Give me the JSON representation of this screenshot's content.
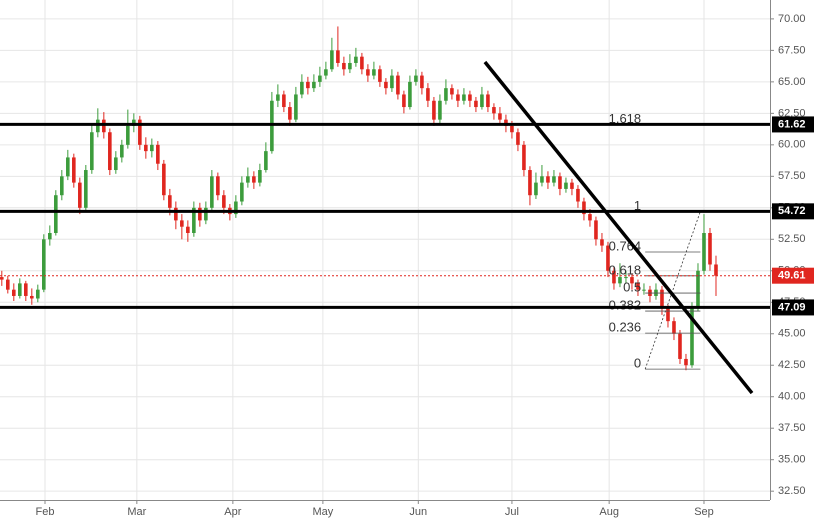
{
  "chart_data": {
    "type": "candlestick",
    "up_color": "#3c9c3c",
    "down_color": "#e0261f",
    "xlim": [
      -0.3,
      128
    ],
    "ylim": [
      31.8,
      71.5
    ],
    "xticks": [
      {
        "value": 7.2,
        "label": "Feb"
      },
      {
        "value": 22.5,
        "label": "Mar"
      },
      {
        "value": 38.5,
        "label": "Apr"
      },
      {
        "value": 53.5,
        "label": "May"
      },
      {
        "value": 69.4,
        "label": "Jun"
      },
      {
        "value": 85,
        "label": "Jul"
      },
      {
        "value": 101.2,
        "label": "Aug"
      },
      {
        "value": 117,
        "label": "Sep"
      }
    ],
    "yticks": [
      {
        "value": 32.5,
        "label": "32.50"
      },
      {
        "value": 35,
        "label": "35.00"
      },
      {
        "value": 37.5,
        "label": "37.50"
      },
      {
        "value": 40,
        "label": "40.00"
      },
      {
        "value": 42.5,
        "label": "42.50"
      },
      {
        "value": 45,
        "label": "45.00"
      },
      {
        "value": 47.5,
        "label": "47.50"
      },
      {
        "value": 50,
        "label": "50.00"
      },
      {
        "value": 52.5,
        "label": "52.50"
      },
      {
        "value": 55,
        "label": "55.00"
      },
      {
        "value": 57.5,
        "label": "57.50"
      },
      {
        "value": 60,
        "label": "60.00"
      },
      {
        "value": 62.5,
        "label": "62.50"
      },
      {
        "value": 65,
        "label": "65.00"
      },
      {
        "value": 67.5,
        "label": "67.50"
      },
      {
        "value": 70,
        "label": "70.00"
      }
    ],
    "grid": true,
    "candles": [
      [
        49.5,
        50,
        48.8,
        49.3
      ],
      [
        49.3,
        49.6,
        48.2,
        48.5
      ],
      [
        48.5,
        49,
        47.6,
        48
      ],
      [
        48,
        49.4,
        47.8,
        49
      ],
      [
        49,
        49.2,
        47.6,
        48
      ],
      [
        48,
        48.6,
        47.3,
        47.8
      ],
      [
        47.8,
        48.9,
        47.5,
        48.5
      ],
      [
        48.5,
        52.9,
        48.3,
        52.5
      ],
      [
        52.5,
        53.6,
        52,
        53
      ],
      [
        53,
        56.4,
        52.8,
        56
      ],
      [
        56,
        58,
        55.6,
        57.5
      ],
      [
        57.5,
        59.6,
        57.2,
        59
      ],
      [
        59,
        59.3,
        56.6,
        57
      ],
      [
        57,
        57.4,
        54.5,
        55
      ],
      [
        55,
        58.4,
        54.8,
        58
      ],
      [
        58,
        61.6,
        57.7,
        61
      ],
      [
        61,
        62.9,
        60.6,
        62
      ],
      [
        62,
        62.6,
        60.5,
        61
      ],
      [
        61,
        61.3,
        57.6,
        58
      ],
      [
        58,
        59.5,
        57.7,
        59
      ],
      [
        59,
        60.4,
        58.6,
        60
      ],
      [
        60,
        62.8,
        59.7,
        61.5
      ],
      [
        61.5,
        62.5,
        61,
        62
      ],
      [
        62,
        62.3,
        59.6,
        60
      ],
      [
        60,
        60.6,
        58.9,
        59.5
      ],
      [
        59.5,
        60.5,
        59,
        60
      ],
      [
        60,
        60.3,
        58,
        58.5
      ],
      [
        58.5,
        58.8,
        55.6,
        56
      ],
      [
        56,
        56.5,
        54.4,
        55
      ],
      [
        55,
        55.5,
        53.3,
        54
      ],
      [
        54,
        54.5,
        52.5,
        53.5
      ],
      [
        53.5,
        54,
        52.3,
        53
      ],
      [
        53,
        55.5,
        52.7,
        55
      ],
      [
        55,
        55.4,
        53.5,
        54
      ],
      [
        54,
        55.5,
        53.7,
        55
      ],
      [
        55,
        58,
        54.8,
        57.5
      ],
      [
        57.5,
        57.8,
        55.6,
        56
      ],
      [
        56,
        56.4,
        54.5,
        55
      ],
      [
        55,
        55.3,
        54,
        54.5
      ],
      [
        54.5,
        56,
        54.2,
        55.5
      ],
      [
        55.5,
        57.5,
        55.2,
        57
      ],
      [
        57,
        58.2,
        56.6,
        57.5
      ],
      [
        57.5,
        57.9,
        56.5,
        57
      ],
      [
        57,
        58.5,
        56.7,
        58
      ],
      [
        58,
        60.2,
        57.8,
        59.5
      ],
      [
        59.5,
        64.2,
        59.3,
        63.5
      ],
      [
        63.5,
        64.8,
        63,
        64
      ],
      [
        64,
        64.3,
        62.6,
        63
      ],
      [
        63,
        63.4,
        61.5,
        62
      ],
      [
        62,
        64.6,
        61.8,
        64
      ],
      [
        64,
        65.6,
        63.7,
        65
      ],
      [
        65,
        65.4,
        64,
        64.5
      ],
      [
        64.5,
        65.6,
        64.2,
        65
      ],
      [
        65,
        66.2,
        64.6,
        65.5
      ],
      [
        65.5,
        66.6,
        65.2,
        66
      ],
      [
        66,
        68.5,
        65.8,
        67.5
      ],
      [
        67.5,
        69.4,
        66.2,
        66.5
      ],
      [
        66.5,
        67,
        65.5,
        66
      ],
      [
        66,
        67.2,
        65.7,
        66.5
      ],
      [
        66.5,
        67.7,
        66.2,
        67
      ],
      [
        67,
        67.3,
        65.6,
        66
      ],
      [
        66,
        66.4,
        65,
        65.5
      ],
      [
        65.5,
        66.6,
        65.2,
        66
      ],
      [
        66,
        66.3,
        64.6,
        65
      ],
      [
        65,
        65.3,
        64,
        64.5
      ],
      [
        64.5,
        66,
        64.2,
        65.5
      ],
      [
        65.5,
        65.8,
        63.6,
        64
      ],
      [
        64,
        64.3,
        62.5,
        63
      ],
      [
        63,
        65.5,
        62.8,
        65
      ],
      [
        65,
        66,
        64.7,
        65.5
      ],
      [
        65.5,
        65.8,
        64,
        64.5
      ],
      [
        64.5,
        64.9,
        63,
        63.5
      ],
      [
        63.5,
        63.8,
        61.5,
        62
      ],
      [
        62,
        64,
        61.7,
        63.5
      ],
      [
        63.5,
        65.2,
        63.2,
        64.5
      ],
      [
        64.5,
        64.8,
        63.6,
        64
      ],
      [
        64,
        64.4,
        63,
        63.5
      ],
      [
        63.5,
        64.5,
        63.2,
        64
      ],
      [
        64,
        64.3,
        63,
        63.5
      ],
      [
        63.5,
        63.8,
        62.6,
        63
      ],
      [
        63,
        64.6,
        62.8,
        64
      ],
      [
        64,
        64.3,
        62.6,
        63
      ],
      [
        63,
        63.3,
        62,
        62.5
      ],
      [
        62.5,
        63,
        61.6,
        62
      ],
      [
        62,
        62.4,
        61,
        61.5
      ],
      [
        61.5,
        61.9,
        60.5,
        61
      ],
      [
        61,
        61.3,
        59.5,
        60
      ],
      [
        60,
        60.3,
        57.5,
        58
      ],
      [
        58,
        58.3,
        55.2,
        56
      ],
      [
        56,
        57.8,
        55.7,
        57
      ],
      [
        57,
        58.4,
        56.7,
        57.5
      ],
      [
        57.5,
        57.9,
        56.5,
        57
      ],
      [
        57,
        58,
        56.7,
        57.5
      ],
      [
        57.5,
        57.8,
        56,
        56.5
      ],
      [
        56.5,
        57.4,
        56.2,
        57
      ],
      [
        57,
        57.3,
        56,
        56.5
      ],
      [
        56.5,
        56.8,
        55,
        55.5
      ],
      [
        55.5,
        55.8,
        54,
        54.5
      ],
      [
        54.5,
        54.9,
        53.5,
        54
      ],
      [
        54,
        54.3,
        52,
        52.5
      ],
      [
        52.5,
        53,
        51.5,
        52
      ],
      [
        52,
        52.3,
        49.5,
        50
      ],
      [
        50,
        50.3,
        48.5,
        49
      ],
      [
        49,
        50.6,
        48.7,
        49.5
      ],
      [
        49.5,
        50,
        49,
        49.5
      ],
      [
        49.5,
        49.8,
        48.5,
        49
      ],
      [
        49,
        49.3,
        48,
        48.5
      ],
      [
        48.5,
        49,
        48.1,
        48.5
      ],
      [
        48.5,
        48.8,
        47.5,
        48
      ],
      [
        48,
        49,
        47.7,
        48.5
      ],
      [
        48.5,
        48.8,
        46.5,
        47
      ],
      [
        47,
        47.3,
        45.5,
        46
      ],
      [
        46,
        46.3,
        44.5,
        45
      ],
      [
        45,
        45.3,
        42.6,
        43
      ],
      [
        43,
        43.4,
        42.1,
        42.5
      ],
      [
        42.5,
        47.5,
        42.3,
        47
      ],
      [
        47,
        50.6,
        46.8,
        50
      ],
      [
        50,
        54.5,
        49.7,
        53
      ],
      [
        53,
        53.4,
        50,
        50.5
      ],
      [
        50.5,
        51.2,
        48,
        49.61
      ]
    ],
    "levels": [
      61.62,
      54.72,
      47.09
    ],
    "current_price": 49.61,
    "trendline": {
      "x": [
        80.5,
        125
      ],
      "y": [
        66.58,
        40.29
      ]
    },
    "fib": {
      "x": [
        107.2,
        116.4
      ],
      "levels": [
        {
          "value": 61.62,
          "label": "1.618"
        },
        {
          "value": 54.72,
          "label": "1"
        },
        {
          "value": 51.49,
          "label": "0.764"
        },
        {
          "value": 49.6,
          "label": "0.618"
        },
        {
          "value": 48.23,
          "label": "0.5"
        },
        {
          "value": 46.8,
          "label": "0.382"
        },
        {
          "value": 45.05,
          "label": "0.236"
        },
        {
          "value": 42.19,
          "label": "0"
        }
      ]
    }
  }
}
